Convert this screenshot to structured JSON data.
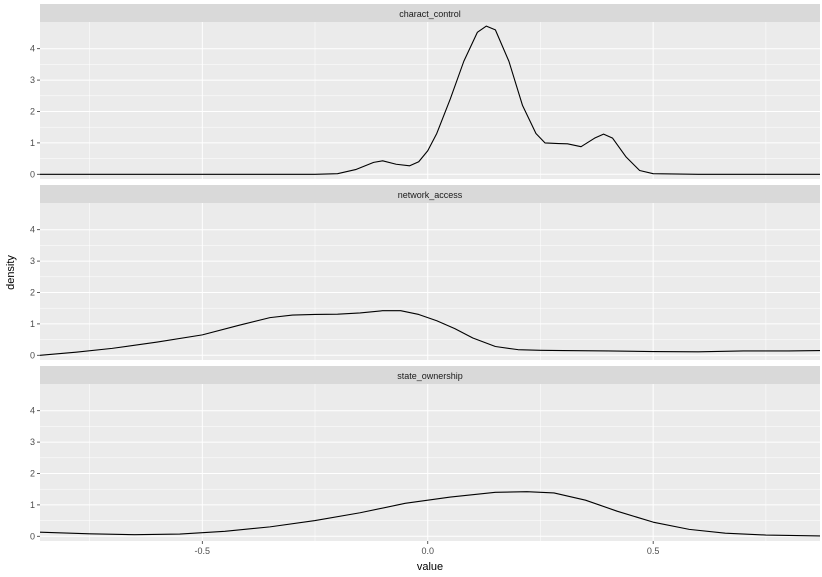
{
  "chart_data": {
    "type": "line",
    "subtype": "density-facets",
    "xlabel": "value",
    "ylabel": "density",
    "xlim": [
      -0.86,
      0.87
    ],
    "ylim": [
      -0.15,
      4.85
    ],
    "x_ticks": [
      -0.5,
      0.0,
      0.5
    ],
    "x_tick_labels": [
      "-0.5",
      "0.0",
      "0.5"
    ],
    "y_ticks": [
      0,
      1,
      2,
      3,
      4
    ],
    "y_tick_labels": [
      "0",
      "1",
      "2",
      "3",
      "4"
    ],
    "grid": true,
    "legend": "none",
    "colors": {
      "panel_bg": "#ebebeb",
      "strip_bg": "#d9d9d9",
      "grid": "#ffffff",
      "line": "#000000"
    },
    "facets": [
      {
        "label": "charact_control",
        "x": [
          -0.86,
          -0.4,
          -0.25,
          -0.2,
          -0.16,
          -0.12,
          -0.1,
          -0.07,
          -0.04,
          -0.02,
          0.0,
          0.02,
          0.05,
          0.08,
          0.11,
          0.13,
          0.15,
          0.18,
          0.21,
          0.24,
          0.26,
          0.29,
          0.31,
          0.34,
          0.37,
          0.39,
          0.41,
          0.44,
          0.47,
          0.5,
          0.6,
          0.87
        ],
        "y": [
          0.0,
          0.0,
          0.0,
          0.02,
          0.15,
          0.38,
          0.43,
          0.32,
          0.27,
          0.4,
          0.75,
          1.3,
          2.4,
          3.6,
          4.52,
          4.72,
          4.6,
          3.6,
          2.2,
          1.3,
          1.0,
          0.98,
          0.97,
          0.88,
          1.15,
          1.28,
          1.15,
          0.55,
          0.12,
          0.02,
          0.0,
          0.0
        ]
      },
      {
        "label": "network_access",
        "x": [
          -0.86,
          -0.78,
          -0.7,
          -0.6,
          -0.5,
          -0.42,
          -0.35,
          -0.3,
          -0.25,
          -0.2,
          -0.15,
          -0.1,
          -0.06,
          -0.02,
          0.02,
          0.06,
          0.1,
          0.15,
          0.2,
          0.25,
          0.3,
          0.4,
          0.5,
          0.6,
          0.7,
          0.8,
          0.87
        ],
        "y": [
          0.0,
          0.1,
          0.22,
          0.42,
          0.65,
          0.95,
          1.2,
          1.28,
          1.3,
          1.31,
          1.35,
          1.42,
          1.42,
          1.3,
          1.1,
          0.85,
          0.55,
          0.28,
          0.18,
          0.16,
          0.15,
          0.14,
          0.12,
          0.11,
          0.14,
          0.14,
          0.15
        ]
      },
      {
        "label": "state_ownership",
        "x": [
          -0.86,
          -0.75,
          -0.65,
          -0.55,
          -0.45,
          -0.35,
          -0.25,
          -0.15,
          -0.05,
          0.05,
          0.15,
          0.22,
          0.28,
          0.35,
          0.42,
          0.5,
          0.58,
          0.66,
          0.75,
          0.87
        ],
        "y": [
          0.13,
          0.08,
          0.05,
          0.07,
          0.16,
          0.3,
          0.5,
          0.75,
          1.05,
          1.25,
          1.4,
          1.42,
          1.38,
          1.15,
          0.8,
          0.45,
          0.22,
          0.1,
          0.04,
          0.01
        ]
      }
    ]
  }
}
